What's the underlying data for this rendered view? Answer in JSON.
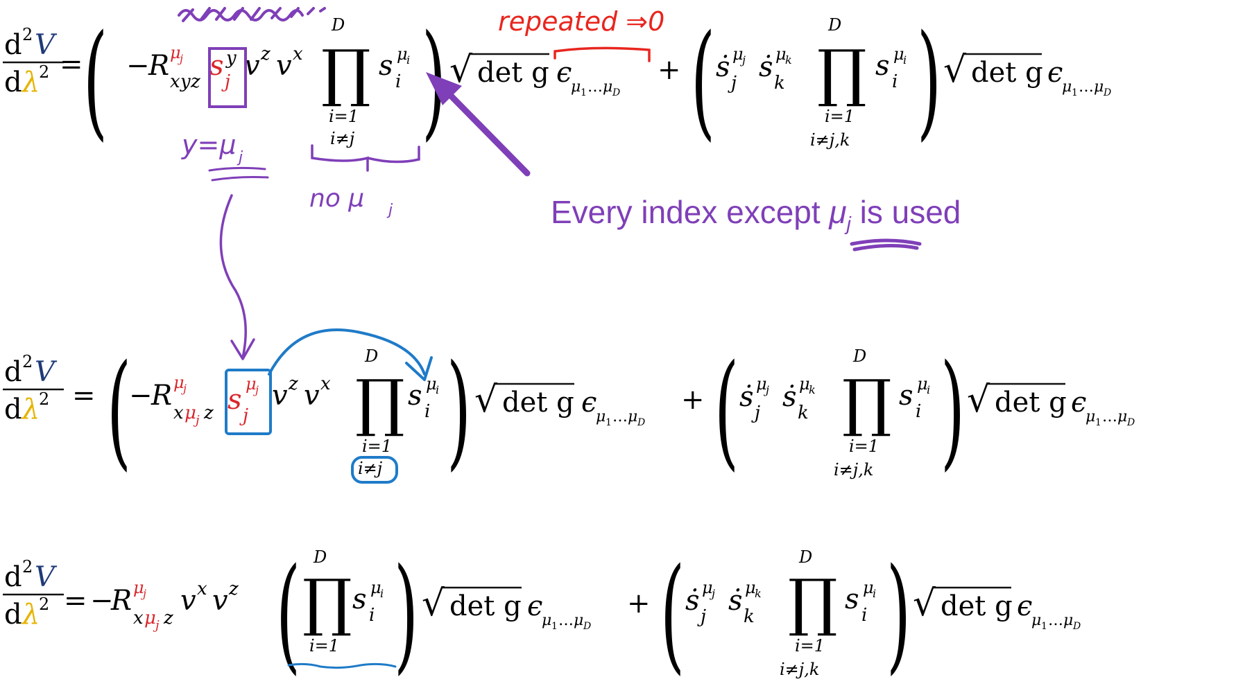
{
  "colors": {
    "ink": "#111111",
    "index_red": "#d9262b",
    "V_blue": "#1f3a77",
    "lambda_yellow": "#e5b400",
    "pen_purple": "#7f3fb8",
    "pen_red": "#e8261f",
    "pen_blue": "#1f7bc8"
  },
  "glyphs": {
    "d": "d",
    "sq": "2",
    "V": "V",
    "lambda": "λ",
    "eq": "=",
    "minus": "−",
    "plus": "+",
    "R": "R",
    "s": "s",
    "sdot": "ṡ",
    "v": "v",
    "x": "x",
    "y": "y",
    "z": "z",
    "mu": "μ",
    "j": "j",
    "k": "k",
    "i": "i",
    "eps": "ϵ",
    "ell": "…",
    "one": "1",
    "Dsub": "D",
    "prod": "∏",
    "D": "D",
    "i_eq_1": "i=1",
    "i_ne_j": "i≠j",
    "i_ne_jk": "i≠j,k",
    "sqrt": "√",
    "det_g": "det g",
    "lparen": "(",
    "rparen": ")"
  },
  "annotations": {
    "scribble": "",
    "repeated": "repeated ⇒0",
    "y_eq_mu_j": "y=μ",
    "y_eq_mu_j_sub": "j",
    "no_mu_j": "no μ",
    "no_mu_j_sub": "j",
    "every_index_prefix": "Every index except ",
    "every_index_mu": "μ",
    "every_index_sub": "j",
    "every_index_suffix": " is used"
  }
}
